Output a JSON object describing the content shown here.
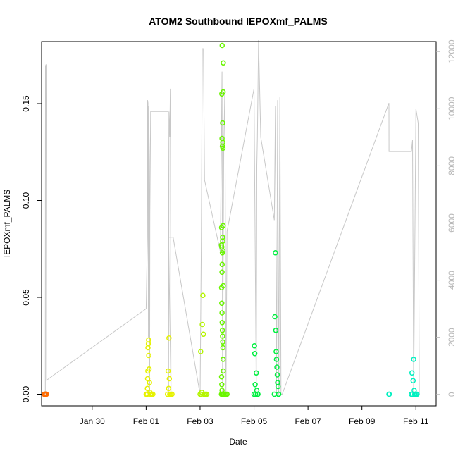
{
  "chart_data": {
    "type": "scatter",
    "title": "ATOM2 Southbound IEPOXmf_PALMS",
    "xlabel": "Date",
    "ylabel": "IEPOXmf_PALMS",
    "xlim": [
      "2017-01-28T03:00",
      "2017-02-11T18:00"
    ],
    "ylim": [
      -0.006,
      0.182
    ],
    "y2lim": [
      -400,
      12350
    ],
    "x_ticks": [
      {
        "label": "Jan 30",
        "date": "2017-01-30"
      },
      {
        "label": "Feb 01",
        "date": "2017-02-01"
      },
      {
        "label": "Feb 03",
        "date": "2017-02-03"
      },
      {
        "label": "Feb 05",
        "date": "2017-02-05"
      },
      {
        "label": "Feb 07",
        "date": "2017-02-07"
      },
      {
        "label": "Feb 09",
        "date": "2017-02-09"
      },
      {
        "label": "Feb 11",
        "date": "2017-02-11"
      }
    ],
    "y_ticks": [
      {
        "label": "0.00",
        "value": 0.0
      },
      {
        "label": "0.05",
        "value": 0.05
      },
      {
        "label": "0.10",
        "value": 0.1
      },
      {
        "label": "0.15",
        "value": 0.15
      }
    ],
    "y2_ticks": [
      {
        "label": "0",
        "value": 0
      },
      {
        "label": "2000",
        "value": 2000
      },
      {
        "label": "4000",
        "value": 4000
      },
      {
        "label": "6000",
        "value": 6000
      },
      {
        "label": "8000",
        "value": 8000
      },
      {
        "label": "10000",
        "value": 10000
      },
      {
        "label": "12000",
        "value": 12000
      }
    ],
    "grid": false,
    "legend": "none",
    "colors": {
      "altitude_line": "#c8c8c8",
      "axis": "#000000",
      "right_axis": "#b8b8b8"
    },
    "altitude_series": {
      "axis": "right",
      "points": [
        [
          "2017-01-28T06:20",
          0
        ],
        [
          "2017-01-28T06:25",
          11500
        ],
        [
          "2017-01-28T07:00",
          11550
        ],
        [
          "2017-01-28T07:30",
          500
        ],
        [
          "2017-02-01T00:00",
          3000
        ],
        [
          "2017-02-01T01:10",
          5500
        ],
        [
          "2017-02-01T01:15",
          10300
        ],
        [
          "2017-02-01T01:40",
          10200
        ],
        [
          "2017-02-01T02:00",
          2000
        ],
        [
          "2017-02-01T02:20",
          10100
        ],
        [
          "2017-02-01T02:50",
          8200
        ],
        [
          "2017-02-01T03:10",
          0
        ],
        [
          "2017-02-01T03:20",
          6300
        ],
        [
          "2017-02-01T04:00",
          9900
        ],
        [
          "2017-02-01T08:00",
          9900
        ],
        [
          "2017-02-01T17:00",
          9900
        ],
        [
          "2017-02-01T19:30",
          9900
        ],
        [
          "2017-02-01T20:00",
          0
        ],
        [
          "2017-02-01T20:20",
          9900
        ],
        [
          "2017-02-01T21:00",
          9000
        ],
        [
          "2017-02-01T21:30",
          10700
        ],
        [
          "2017-02-01T22:10",
          0
        ],
        [
          "2017-02-01T20:00",
          5500
        ],
        [
          "2017-02-02T00:00",
          5500
        ],
        [
          "2017-02-03T00:00",
          0
        ],
        [
          "2017-02-03T01:00",
          5000
        ],
        [
          "2017-02-03T02:00",
          12100
        ],
        [
          "2017-02-03T03:00",
          12100
        ],
        [
          "2017-02-03T04:00",
          7500
        ],
        [
          "2017-02-03T18:00",
          5000
        ],
        [
          "2017-02-03T19:30",
          11300
        ],
        [
          "2017-02-03T20:00",
          0
        ],
        [
          "2017-02-03T21:00",
          8500
        ],
        [
          "2017-02-03T22:00",
          10700
        ],
        [
          "2017-02-03T23:00",
          0
        ],
        [
          "2017-02-04T00:00",
          5700
        ],
        [
          "2017-02-05T00:00",
          10700
        ],
        [
          "2017-02-05T02:00",
          0
        ],
        [
          "2017-02-05T02:30",
          8000
        ],
        [
          "2017-02-05T03:00",
          9000
        ],
        [
          "2017-02-05T04:00",
          12400
        ],
        [
          "2017-02-05T06:00",
          9000
        ],
        [
          "2017-02-05T18:00",
          6100
        ],
        [
          "2017-02-05T19:00",
          10100
        ],
        [
          "2017-02-05T20:00",
          0
        ],
        [
          "2017-02-05T21:00",
          10300
        ],
        [
          "2017-02-05T22:00",
          0
        ],
        [
          "2017-02-05T23:00",
          10400
        ],
        [
          "2017-02-06T00:00",
          0
        ],
        [
          "2017-02-06T01:00",
          0
        ],
        [
          "2017-02-10T00:00",
          10200
        ],
        [
          "2017-02-10T00:05",
          8500
        ],
        [
          "2017-02-10T20:00",
          8500
        ],
        [
          "2017-02-10T21:00",
          8900
        ],
        [
          "2017-02-10T22:00",
          0
        ],
        [
          "2017-02-11T00:00",
          10000
        ],
        [
          "2017-02-11T02:00",
          9500
        ],
        [
          "2017-02-11T03:00",
          0
        ]
      ]
    },
    "series": [
      {
        "color": "#ff6a00",
        "points": [
          [
            "2017-01-28T05:20",
            0.0
          ],
          [
            "2017-01-28T05:40",
            0.0
          ],
          [
            "2017-01-28T06:00",
            0.0
          ],
          [
            "2017-01-28T06:20",
            0.0
          ],
          [
            "2017-01-28T06:40",
            0.0
          ],
          [
            "2017-01-28T07:00",
            0.0
          ],
          [
            "2017-01-28T07:20",
            0.0
          ]
        ]
      },
      {
        "color": "#e6f200",
        "points": [
          [
            "2017-02-01T00:00",
            0.0
          ],
          [
            "2017-02-01T00:30",
            0.0
          ],
          [
            "2017-02-01T01:00",
            0.0
          ],
          [
            "2017-02-01T01:10",
            0.003
          ],
          [
            "2017-02-01T01:20",
            0.008
          ],
          [
            "2017-02-01T01:30",
            0.012
          ],
          [
            "2017-02-01T01:40",
            0.024
          ],
          [
            "2017-02-01T02:00",
            0.026
          ],
          [
            "2017-02-01T02:10",
            0.028
          ],
          [
            "2017-02-01T02:20",
            0.02
          ],
          [
            "2017-02-01T02:40",
            0.013
          ],
          [
            "2017-02-01T03:00",
            0.006
          ],
          [
            "2017-02-01T03:20",
            0.001
          ],
          [
            "2017-02-01T04:00",
            0.0
          ],
          [
            "2017-02-01T04:30",
            0.0
          ],
          [
            "2017-02-01T05:00",
            0.0
          ],
          [
            "2017-02-01T06:00",
            0.0
          ],
          [
            "2017-02-01T19:00",
            0.0
          ],
          [
            "2017-02-01T19:30",
            0.012
          ],
          [
            "2017-02-01T20:00",
            0.003
          ],
          [
            "2017-02-01T20:20",
            0.029
          ],
          [
            "2017-02-01T20:40",
            0.008
          ],
          [
            "2017-02-01T21:00",
            0.0
          ],
          [
            "2017-02-01T22:00",
            0.0
          ],
          [
            "2017-02-01T23:00",
            0.0
          ]
        ]
      },
      {
        "color": "#b4f500",
        "points": [
          [
            "2017-02-03T00:00",
            0.0
          ],
          [
            "2017-02-03T00:30",
            0.022
          ],
          [
            "2017-02-03T01:00",
            0.0
          ],
          [
            "2017-02-03T01:30",
            0.001
          ],
          [
            "2017-02-03T02:00",
            0.036
          ],
          [
            "2017-02-03T02:30",
            0.051
          ],
          [
            "2017-02-03T03:00",
            0.031
          ],
          [
            "2017-02-03T03:30",
            0.0
          ],
          [
            "2017-02-03T04:00",
            0.0
          ],
          [
            "2017-02-03T05:00",
            0.0
          ],
          [
            "2017-02-03T06:00",
            0.0
          ]
        ]
      },
      {
        "color": "#6af500",
        "points": [
          [
            "2017-02-03T19:00",
            0.0
          ],
          [
            "2017-02-03T19:20",
            0.155
          ],
          [
            "2017-02-03T19:30",
            0.132
          ],
          [
            "2017-02-03T19:40",
            0.18
          ],
          [
            "2017-02-03T19:50",
            0.128
          ],
          [
            "2017-02-03T20:00",
            0.14
          ],
          [
            "2017-02-03T20:10",
            0.13
          ],
          [
            "2017-02-03T20:20",
            0.127
          ],
          [
            "2017-02-03T20:30",
            0.156
          ],
          [
            "2017-02-03T20:40",
            0.171
          ],
          [
            "2017-02-03T19:00",
            0.077
          ],
          [
            "2017-02-03T19:10",
            0.086
          ],
          [
            "2017-02-03T19:20",
            0.076
          ],
          [
            "2017-02-03T19:30",
            0.063
          ],
          [
            "2017-02-03T19:40",
            0.067
          ],
          [
            "2017-02-03T19:50",
            0.073
          ],
          [
            "2017-02-03T20:00",
            0.081
          ],
          [
            "2017-02-03T20:10",
            0.079
          ],
          [
            "2017-02-03T20:20",
            0.074
          ],
          [
            "2017-02-03T20:30",
            0.087
          ],
          [
            "2017-02-03T20:40",
            0.056
          ],
          [
            "2017-02-03T19:10",
            0.055
          ],
          [
            "2017-02-03T19:20",
            0.047
          ],
          [
            "2017-02-03T19:30",
            0.042
          ],
          [
            "2017-02-03T19:40",
            0.037
          ],
          [
            "2017-02-03T19:50",
            0.033
          ],
          [
            "2017-02-03T20:00",
            0.03
          ],
          [
            "2017-02-03T20:10",
            0.027
          ],
          [
            "2017-02-03T20:20",
            0.024
          ],
          [
            "2017-02-03T20:30",
            0.018
          ],
          [
            "2017-02-03T20:40",
            0.012
          ],
          [
            "2017-02-03T19:10",
            0.009
          ],
          [
            "2017-02-03T19:20",
            0.005
          ],
          [
            "2017-02-03T19:30",
            0.002
          ],
          [
            "2017-02-03T19:40",
            0.0
          ],
          [
            "2017-02-03T20:00",
            0.0
          ],
          [
            "2017-02-03T20:20",
            0.0
          ],
          [
            "2017-02-03T20:40",
            0.0
          ],
          [
            "2017-02-03T21:00",
            0.0
          ],
          [
            "2017-02-03T22:00",
            0.0
          ],
          [
            "2017-02-03T23:00",
            0.0
          ],
          [
            "2017-02-04T00:00",
            0.0
          ]
        ]
      },
      {
        "color": "#00f040",
        "points": [
          [
            "2017-02-05T00:00",
            0.0
          ],
          [
            "2017-02-05T00:20",
            0.025
          ],
          [
            "2017-02-05T00:40",
            0.021
          ],
          [
            "2017-02-05T01:00",
            0.005
          ],
          [
            "2017-02-05T01:20",
            0.0
          ],
          [
            "2017-02-05T02:00",
            0.011
          ],
          [
            "2017-02-05T02:30",
            0.002
          ],
          [
            "2017-02-05T03:00",
            0.0
          ],
          [
            "2017-02-05T03:30",
            0.0
          ],
          [
            "2017-02-05T18:00",
            0.0
          ],
          [
            "2017-02-05T18:30",
            0.04
          ],
          [
            "2017-02-05T19:00",
            0.073
          ],
          [
            "2017-02-05T19:20",
            0.033
          ],
          [
            "2017-02-05T19:40",
            0.022
          ],
          [
            "2017-02-05T20:00",
            0.018
          ],
          [
            "2017-02-05T20:20",
            0.014
          ],
          [
            "2017-02-05T20:40",
            0.01
          ],
          [
            "2017-02-05T21:00",
            0.006
          ],
          [
            "2017-02-05T21:20",
            0.004
          ],
          [
            "2017-02-05T21:40",
            0.0
          ],
          [
            "2017-02-05T22:00",
            0.0
          ]
        ]
      },
      {
        "color": "#00f0c0",
        "points": [
          [
            "2017-02-10T00:00",
            0.0
          ],
          [
            "2017-02-10T00:20",
            0.0
          ],
          [
            "2017-02-10T20:00",
            0.0
          ],
          [
            "2017-02-10T20:30",
            0.011
          ],
          [
            "2017-02-10T21:00",
            0.0
          ],
          [
            "2017-02-10T21:30",
            0.007
          ],
          [
            "2017-02-10T22:00",
            0.018
          ],
          [
            "2017-02-10T22:30",
            0.002
          ],
          [
            "2017-02-10T23:00",
            0.0
          ],
          [
            "2017-02-11T00:00",
            0.0
          ],
          [
            "2017-02-11T01:00",
            0.0
          ]
        ]
      }
    ]
  }
}
